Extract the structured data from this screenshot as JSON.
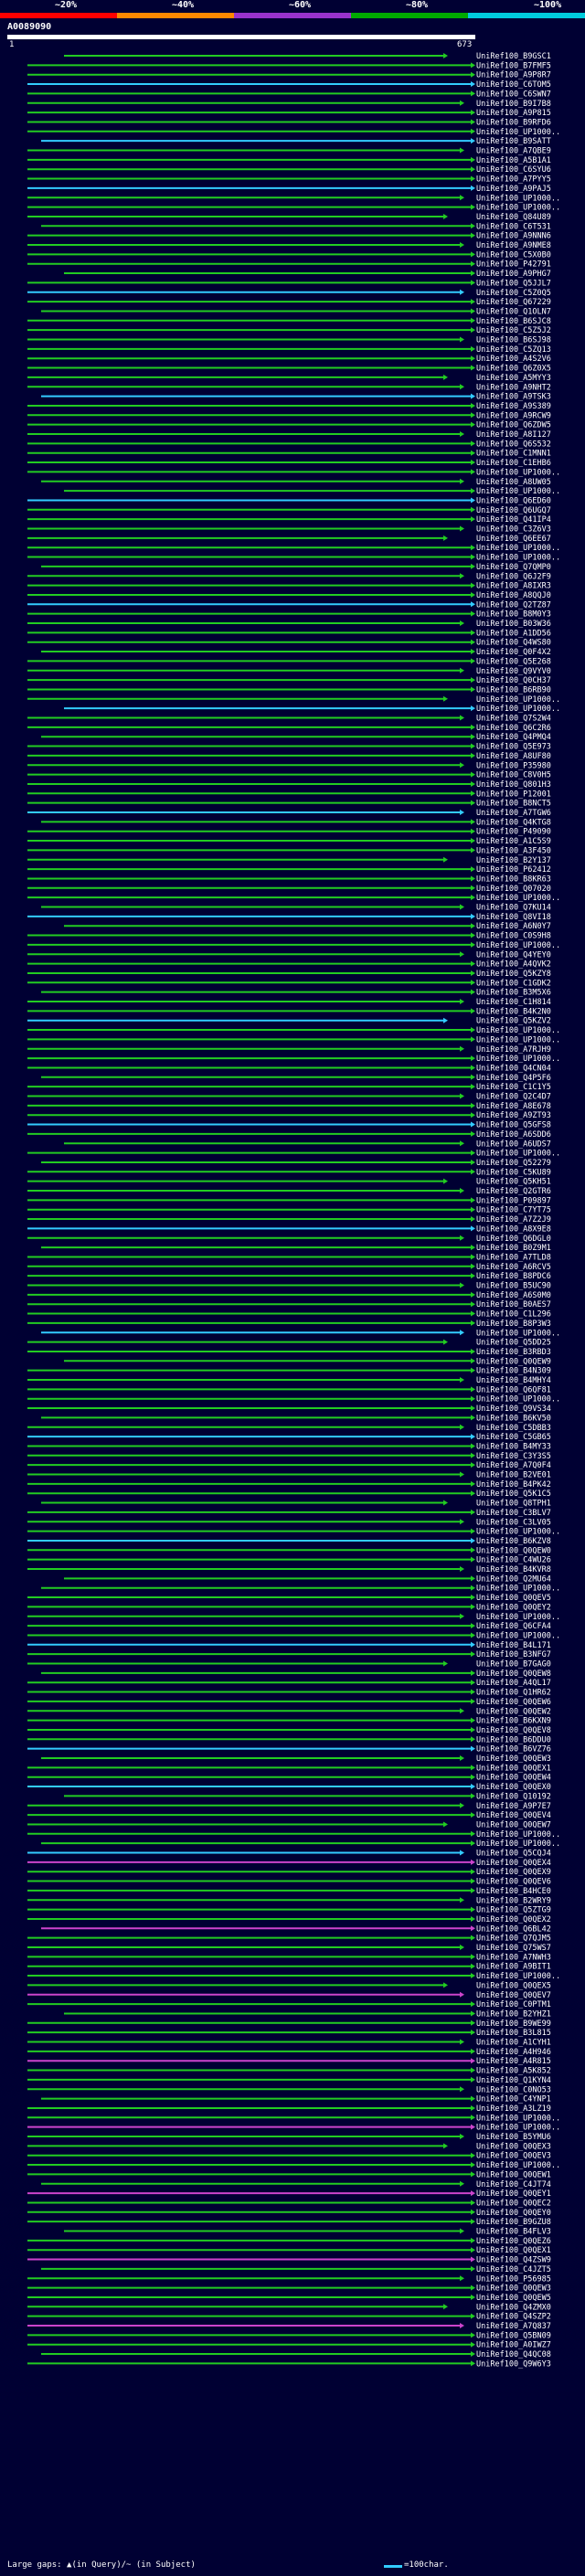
{
  "legend": {
    "thresholds": [
      "~20%",
      "~40%",
      "~60%",
      "~80%",
      "~100%"
    ],
    "colors": [
      "#ff0000",
      "#ff8800",
      "#9933cc",
      "#00aa00",
      "#00ccdd"
    ]
  },
  "query": {
    "id": "A0089090",
    "start": "1",
    "end": "673"
  },
  "footer": {
    "gap_note": "Large gaps: ▲(in Query)/~ (in Subject)",
    "scale_note": "=100char."
  },
  "palette": {
    "green": "#22cc22",
    "cyan": "#33ccff",
    "magenta": "#cc44cc"
  },
  "hits": [
    "UniRef100_B9GSC1",
    "UniRef100_B7FMF5",
    "UniRef100_A9P8R7",
    "UniRef100_C6TOM5",
    "UniRef100_C6SWN7",
    "UniRef100_B9I7B8",
    "UniRef100_A9P815",
    "UniRef100_B9RFD6",
    "UniRef100_UP1000..",
    "UniRef100_B9SATT",
    "UniRef100_A7QBE9",
    "UniRef100_A5B1A1",
    "UniRef100_C6SYU6",
    "UniRef100_A7PYY5",
    "UniRef100_A9PAJ5",
    "UniRef100_UP1000..",
    "UniRef100_UP1000..",
    "UniRef100_Q84U89",
    "UniRef100_C6T531",
    "UniRef100_A9NNN6",
    "UniRef100_A9NME8",
    "UniRef100_C5X0B0",
    "UniRef100_P42791",
    "UniRef100_A9PHG7",
    "UniRef100_Q5JJL7",
    "UniRef100_C5Z0Q5",
    "UniRef100_Q67229",
    "UniRef100_Q1OLN7",
    "UniRef100_B6SJC8",
    "UniRef100_C5Z5J2",
    "UniRef100_B6SJ98",
    "UniRef100_C5ZQ13",
    "UniRef100_A4S2V6",
    "UniRef100_Q6Z0X5",
    "UniRef100_A5MYY3",
    "UniRef100_A9NHT2",
    "UniRef100_A9TSK3",
    "UniRef100_A9S389",
    "UniRef100_A9RCW9",
    "UniRef100_Q6ZDW5",
    "UniRef100_A8I127",
    "UniRef100_Q6S532",
    "UniRef100_C1MNN1",
    "UniRef100_C1EHB6",
    "UniRef100_UP1000..",
    "UniRef100_A8UW05",
    "UniRef100_UP1000..",
    "UniRef100_Q6ED60",
    "UniRef100_Q6UGQ7",
    "UniRef100_Q41IP4",
    "UniRef100_C3Z6V3",
    "UniRef100_Q6EE67",
    "UniRef100_UP1000..",
    "UniRef100_UP1000..",
    "UniRef100_Q7QMP0",
    "UniRef100_Q6J2F9",
    "UniRef100_A8IXR3",
    "UniRef100_A8QQJ0",
    "UniRef100_Q2TZ87",
    "UniRef100_B8M0Y3",
    "UniRef100_B03W36",
    "UniRef100_A1DD56",
    "UniRef100_Q4WS80",
    "UniRef100_Q0F4X2",
    "UniRef100_Q5E268",
    "UniRef100_Q9VYV0",
    "UniRef100_Q0CH37",
    "UniRef100_B6RB90",
    "UniRef100_UP1000..",
    "UniRef100_UP1000..",
    "UniRef100_Q7S2W4",
    "UniRef100_Q6C2R6",
    "UniRef100_Q4PMQ4",
    "UniRef100_Q5E973",
    "UniRef100_A8UF80",
    "UniRef100_P35980",
    "UniRef100_C8V0H5",
    "UniRef100_Q801H3",
    "UniRef100_P12001",
    "UniRef100_B8NCT5",
    "UniRef100_A7TGW6",
    "UniRef100_Q4KTG8",
    "UniRef100_P49090",
    "UniRef100_A1C5S9",
    "UniRef100_A3F450",
    "UniRef100_B2Y137",
    "UniRef100_P62412",
    "UniRef100_B8KR63",
    "UniRef100_Q07020",
    "UniRef100_UP1000..",
    "UniRef100_Q7KU14",
    "UniRef100_Q8VI18",
    "UniRef100_A6N0Y7",
    "UniRef100_C0S9H8",
    "UniRef100_UP1000..",
    "UniRef100_Q4YEY0",
    "UniRef100_A4QVK2",
    "UniRef100_Q5KZY8",
    "UniRef100_C1GDK2",
    "UniRef100_B3M5X6",
    "UniRef100_C1H814",
    "UniRef100_B4K2N0",
    "UniRef100_Q5KZV2",
    "UniRef100_UP1000..",
    "UniRef100_UP1000..",
    "UniRef100_A7RJH9",
    "UniRef100_UP1000..",
    "UniRef100_Q4CN04",
    "UniRef100_Q4P5F6",
    "UniRef100_C1C1Y5",
    "UniRef100_Q2C4D7",
    "UniRef100_A8E678",
    "UniRef100_A9ZT93",
    "UniRef100_Q5GFS8",
    "UniRef100_A6SDD6",
    "UniRef100_A6UDS7",
    "UniRef100_UP1000..",
    "UniRef100_Q52279",
    "UniRef100_C5KU89",
    "UniRef100_Q5KH51",
    "UniRef100_Q2GTR6",
    "UniRef100_P09897",
    "UniRef100_C7YT75",
    "UniRef100_A7Z2J9",
    "UniRef100_A8X9E8",
    "UniRef100_Q6DGL0",
    "UniRef100_B0Z9M1",
    "UniRef100_A7TLD8",
    "UniRef100_A6RCV5",
    "UniRef100_B8PDC6",
    "UniRef100_B5UC90",
    "UniRef100_A6S0M0",
    "UniRef100_B0AES7",
    "UniRef100_C1L296",
    "UniRef100_B8P3W3",
    "UniRef100_UP1000..",
    "UniRef100_Q5DD25",
    "UniRef100_B3RBD3",
    "UniRef100_Q0QEW9",
    "UniRef100_B4N309",
    "UniRef100_B4MHY4",
    "UniRef100_Q6QF81",
    "UniRef100_UP1000..",
    "UniRef100_Q9VS34",
    "UniRef100_B6KV50",
    "UniRef100_C5DBB3",
    "UniRef100_C5GB65",
    "UniRef100_B4MY33",
    "UniRef100_C3Y3S5",
    "UniRef100_A7Q0F4",
    "UniRef100_B2VE01",
    "UniRef100_B4PK42",
    "UniRef100_Q5K1C5",
    "UniRef100_Q8TPH1",
    "UniRef100_C3BLV7",
    "UniRef100_C3LV05",
    "UniRef100_UP1000..",
    "UniRef100_B6KZV8",
    "UniRef100_Q0QEW0",
    "UniRef100_C4WU26",
    "UniRef100_B4KVR8",
    "UniRef100_Q2MU64",
    "UniRef100_UP1000..",
    "UniRef100_Q0QEV5",
    "UniRef100_Q0QEY2",
    "UniRef100_UP1000..",
    "UniRef100_Q6CFA4",
    "UniRef100_UP1000..",
    "UniRef100_B4L171",
    "UniRef100_B3NFG7",
    "UniRef100_B7GAG0",
    "UniRef100_Q0QEW8",
    "UniRef100_A4QL17",
    "UniRef100_Q1HR62",
    "UniRef100_Q0QEW6",
    "UniRef100_Q0QEW2",
    "UniRef100_B6KXN9",
    "UniRef100_Q0QEV8",
    "UniRef100_B6DDU0",
    "UniRef100_B6VZ76",
    "UniRef100_Q0QEW3",
    "UniRef100_Q0QEX1",
    "UniRef100_Q0QEW4",
    "UniRef100_Q0QEX0",
    "UniRef100_Q10192",
    "UniRef100_A9P7E7",
    "UniRef100_Q0QEV4",
    "UniRef100_Q0QEW7",
    "UniRef100_UP1000..",
    "UniRef100_UP1000..",
    "UniRef100_Q5CQJ4",
    "UniRef100_Q0QEX4",
    "UniRef100_Q0QEX9",
    "UniRef100_Q0QEV6",
    "UniRef100_B4HCE0",
    "UniRef100_B2WRY9",
    "UniRef100_Q5ZTG9",
    "UniRef100_Q0QEX2",
    "UniRef100_Q6BL42",
    "UniRef100_Q7QJM5",
    "UniRef100_Q75WS7",
    "UniRef100_A7NWH3",
    "UniRef100_A9BIT1",
    "UniRef100_UP1000..",
    "UniRef100_Q0QEX5",
    "UniRef100_Q0QEV7",
    "UniRef100_C0PTM1",
    "UniRef100_B2YHZ1",
    "UniRef100_B9WE99",
    "UniRef100_B3L815",
    "UniRef100_A1CYH1",
    "UniRef100_A4H946",
    "UniRef100_A4R815",
    "UniRef100_A5K852",
    "UniRef100_Q1KYN4",
    "UniRef100_C0NO53",
    "UniRef100_C4YNP1",
    "UniRef100_A3LZ19",
    "UniRef100_UP1000..",
    "UniRef100_UP1000..",
    "UniRef100_B5YMU6",
    "UniRef100_Q0QEX3",
    "UniRef100_Q0QEV3",
    "UniRef100_UP1000..",
    "UniRef100_Q0QEW1",
    "UniRef100_C4JT74",
    "UniRef100_Q0QEY1",
    "UniRef100_Q0QEC2",
    "UniRef100_Q0QEY0",
    "UniRef100_B9GZU8",
    "UniRef100_B4FLV3",
    "UniRef100_Q0QEZ6",
    "UniRef100_Q0QEX1",
    "UniRef100_Q4ZSW9",
    "UniRef100_C4JZT5",
    "UniRef100_P56985",
    "UniRef100_Q0QEW3",
    "UniRef100_Q0QEW5",
    "UniRef100_Q4ZMX0",
    "UniRef100_Q4SZP2",
    "UniRef100_A7Q837",
    "UniRef100_Q5BN09",
    "UniRef100_A0IWZ7",
    "UniRef100_Q4QC08",
    "UniRef100_Q9W6Y3"
  ]
}
